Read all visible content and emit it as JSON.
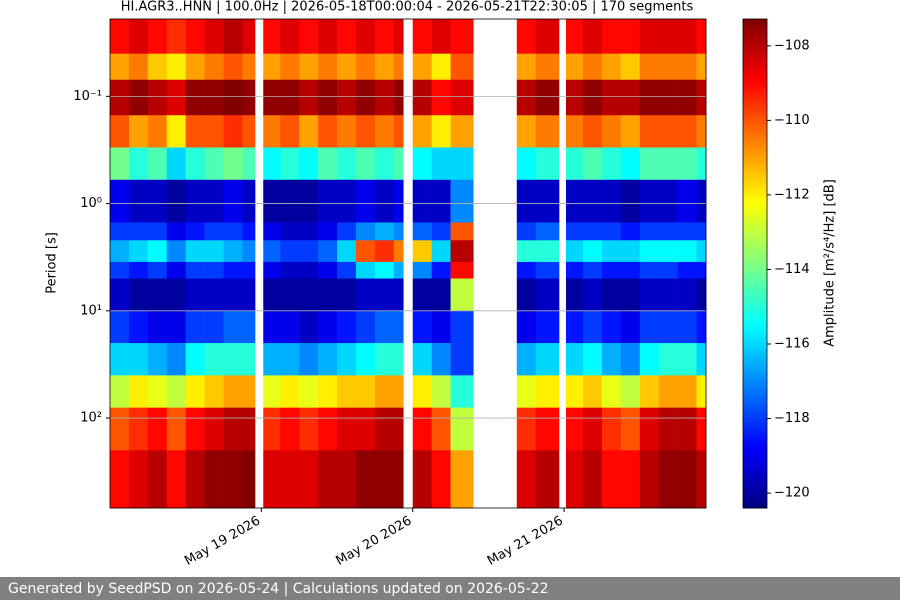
{
  "chart_data": {
    "type": "heatmap",
    "title": "HI.AGR3..HNN | 100.0Hz | 2026-05-18T00:00:04 - 2026-05-21T22:30:05 | 170 segments",
    "ylabel": "Period [s]",
    "colorbar_label": "Amplitude [m²/s⁴/Hz] [dB]",
    "colormap": "jet",
    "y_scale": "log",
    "grid": "y",
    "xlim": [
      "2026-05-18T00:00:04",
      "2026-05-21T22:30:05"
    ],
    "xticks": [
      {
        "value": "2026-05-19T00:00:00",
        "label": "May 19 2026"
      },
      {
        "value": "2026-05-20T00:00:00",
        "label": "May 20 2026"
      },
      {
        "value": "2026-05-21T00:00:00",
        "label": "May 21 2026"
      }
    ],
    "ylim": [
      690,
      0.019
    ],
    "yticks": [
      {
        "value": 0.1,
        "label": "10⁻¹"
      },
      {
        "value": 1,
        "label": "10⁰"
      },
      {
        "value": 10,
        "label": "10¹"
      },
      {
        "value": 100,
        "label": "10²"
      }
    ],
    "clim": [
      -120.4,
      -107.28
    ],
    "cticks": [
      {
        "value": -120,
        "label": "−120"
      },
      {
        "value": -118,
        "label": "−118"
      },
      {
        "value": -116,
        "label": "−116"
      },
      {
        "value": -114,
        "label": "−114"
      },
      {
        "value": -112,
        "label": "−112"
      },
      {
        "value": -110,
        "label": "−110"
      },
      {
        "value": -108,
        "label": "−108"
      }
    ],
    "ybins": [
      0.019,
      0.04,
      0.07,
      0.15,
      0.3,
      0.6,
      1.5,
      2.2,
      3.5,
      5,
      10,
      20,
      40,
      80,
      200,
      690
    ],
    "x": [
      "2026-05-18T00:00:04",
      "2026-05-18T03:00:00",
      "2026-05-18T06:00:00",
      "2026-05-18T09:00:00",
      "2026-05-18T12:00:00",
      "2026-05-18T15:00:00",
      "2026-05-18T18:00:00",
      "2026-05-18T21:00:00",
      "2026-05-18T23:00:00",
      "2026-05-19T00:18:00",
      "2026-05-19T03:00:00",
      "2026-05-19T06:00:00",
      "2026-05-19T09:00:00",
      "2026-05-19T12:00:00",
      "2026-05-19T15:00:00",
      "2026-05-19T18:00:00",
      "2026-05-19T21:00:00",
      "2026-05-19T22:30:00",
      "2026-05-20T00:00:00",
      "2026-05-20T03:00:00",
      "2026-05-20T06:00:00",
      "2026-05-20T09:36:00",
      "2026-05-20T16:30:00",
      "2026-05-20T19:30:00",
      "2026-05-20T23:12:00",
      "2026-05-21T00:18:00",
      "2026-05-21T03:00:00",
      "2026-05-21T06:00:00",
      "2026-05-21T09:00:00",
      "2026-05-21T12:00:00",
      "2026-05-21T15:00:00",
      "2026-05-21T18:00:00",
      "2026-05-21T21:00:00"
    ],
    "values": [
      [
        -109,
        -111,
        -108,
        -110,
        -114,
        -119,
        -118,
        -116.5,
        -118,
        -119.5,
        -118,
        -116,
        -113,
        -110,
        -109
      ],
      [
        -108.5,
        -110.5,
        -107.5,
        -111,
        -115,
        -119.5,
        -118,
        -116,
        -118.5,
        -120,
        -118.5,
        -116,
        -112,
        -109.5,
        -108.5
      ],
      [
        -109,
        -111.5,
        -108,
        -110.5,
        -114.5,
        -119.5,
        -118,
        -115.5,
        -118,
        -120,
        -119,
        -116.5,
        -112.5,
        -109,
        -108
      ],
      [
        -109.5,
        -112,
        -108.5,
        -112,
        -116,
        -120,
        -119,
        -117,
        -119,
        -120,
        -119,
        -117,
        -113,
        -110,
        -109
      ],
      [
        -109,
        -111,
        -107.5,
        -110,
        -115,
        -119.5,
        -118.5,
        -116,
        -118,
        -119.5,
        -118,
        -115.5,
        -112,
        -109,
        -108
      ],
      [
        -108.5,
        -110.5,
        -107.5,
        -110,
        -114.5,
        -119.5,
        -118,
        -116,
        -118,
        -119.5,
        -118,
        -115,
        -111.5,
        -108.5,
        -107.5
      ],
      [
        -108,
        -110,
        -107,
        -109.5,
        -114,
        -119,
        -118,
        -116.5,
        -118.5,
        -119.5,
        -117.5,
        -115,
        -111,
        -108,
        -107.5
      ],
      [
        -108.5,
        -110.5,
        -107.5,
        -110,
        -114.5,
        -119.5,
        -118.5,
        -117,
        -118.5,
        -119.5,
        -117.5,
        -115,
        -111,
        -108,
        -107
      ],
      null,
      [
        -109,
        -111,
        -107.5,
        -110.5,
        -115.5,
        -120,
        -119,
        -117.5,
        -119,
        -120,
        -119,
        -116.5,
        -112.5,
        -109.5,
        -108.5
      ],
      [
        -108.5,
        -110.5,
        -107.5,
        -110,
        -115,
        -120,
        -119.5,
        -118,
        -119.5,
        -120,
        -119,
        -116.5,
        -112,
        -109,
        -108.5
      ],
      [
        -109,
        -111,
        -108,
        -111,
        -115.5,
        -120,
        -119.5,
        -118,
        -119.5,
        -120,
        -119.5,
        -117,
        -112.5,
        -109.5,
        -108.5
      ],
      [
        -108.5,
        -110.5,
        -107.5,
        -110,
        -114.5,
        -119.5,
        -119,
        -117.5,
        -119,
        -120,
        -119,
        -116.5,
        -112,
        -109,
        -108
      ],
      [
        -109,
        -111,
        -108,
        -110.5,
        -115,
        -119.5,
        -118,
        -116,
        -118,
        -120,
        -118.5,
        -116,
        -111.5,
        -108.5,
        -108
      ],
      [
        -108.5,
        -110.5,
        -107.5,
        -110,
        -114.5,
        -119,
        -117,
        -110,
        -116,
        -119.5,
        -118,
        -115.5,
        -111.5,
        -108.5,
        -107.5
      ],
      [
        -109,
        -111,
        -108,
        -110.5,
        -115,
        -119.5,
        -116.5,
        -109.5,
        -115.5,
        -119.5,
        -117.5,
        -115,
        -111,
        -108,
        -107.5
      ],
      [
        -108.5,
        -110.5,
        -107.5,
        -110,
        -114.5,
        -119,
        -117,
        -110.5,
        -116.5,
        -119.5,
        -117.5,
        -115,
        -111,
        -108,
        -107.5
      ],
      null,
      [
        -109,
        -111,
        -108,
        -111,
        -115.5,
        -119.5,
        -117.5,
        -111.5,
        -117,
        -120,
        -118.5,
        -116,
        -112,
        -109,
        -108
      ],
      [
        -108.5,
        -112,
        -109,
        -112,
        -116,
        -119.5,
        -118,
        -116,
        -118.5,
        -120,
        -119,
        -117,
        -113,
        -110,
        -109
      ],
      [
        -109,
        -110,
        -108.5,
        -111,
        -116,
        -117,
        -110,
        -108,
        -109,
        -113,
        -118,
        -118,
        -115,
        -113,
        -111
      ],
      null,
      [
        -109,
        -111,
        -108,
        -111,
        -115.5,
        -119.5,
        -118,
        -115,
        -118.5,
        -120,
        -119,
        -116.5,
        -112.5,
        -109.5,
        -108.5
      ],
      [
        -108.5,
        -110.5,
        -107.5,
        -110.5,
        -115,
        -119.5,
        -117.5,
        -115,
        -118,
        -119.5,
        -118.5,
        -116,
        -112,
        -109,
        -108
      ],
      null,
      [
        -109,
        -111,
        -108,
        -110.5,
        -115,
        -119.5,
        -118,
        -116,
        -118.5,
        -120,
        -118.5,
        -116,
        -112,
        -109,
        -108.5
      ],
      [
        -108.5,
        -110.5,
        -107.5,
        -110,
        -114.5,
        -119.5,
        -118,
        -115.5,
        -118,
        -119.5,
        -118,
        -115.5,
        -111.5,
        -108.5,
        -108
      ],
      [
        -109,
        -111,
        -108,
        -110.5,
        -115,
        -119.5,
        -118,
        -116,
        -118.5,
        -120,
        -118.5,
        -116.5,
        -112.5,
        -109.5,
        -109
      ],
      [
        -109,
        -111.5,
        -108,
        -111,
        -115.5,
        -120,
        -118.5,
        -116,
        -118.5,
        -120,
        -119,
        -117,
        -113,
        -110,
        -109
      ],
      [
        -108.5,
        -110.5,
        -107.5,
        -110,
        -114.5,
        -119.5,
        -118,
        -115.5,
        -118,
        -119.5,
        -118,
        -115.5,
        -111.5,
        -108.5,
        -108
      ],
      [
        -108.5,
        -110.5,
        -107.5,
        -110,
        -114.5,
        -119.5,
        -118,
        -115.5,
        -118,
        -119.5,
        -118,
        -115,
        -111,
        -108,
        -107.5
      ],
      [
        -108.5,
        -110.5,
        -107.5,
        -110,
        -114.5,
        -119,
        -118,
        -115.5,
        -118.5,
        -119.5,
        -118,
        -115,
        -111,
        -108,
        -107.5
      ],
      [
        -109,
        -111,
        -108,
        -110.5,
        -115,
        -119.5,
        -118,
        -116,
        -118.5,
        -120,
        -118.5,
        -116,
        -112,
        -109,
        -108
      ]
    ]
  },
  "footer": "Generated by SeedPSD on 2026-05-24 | Calculations updated on 2026-05-22"
}
